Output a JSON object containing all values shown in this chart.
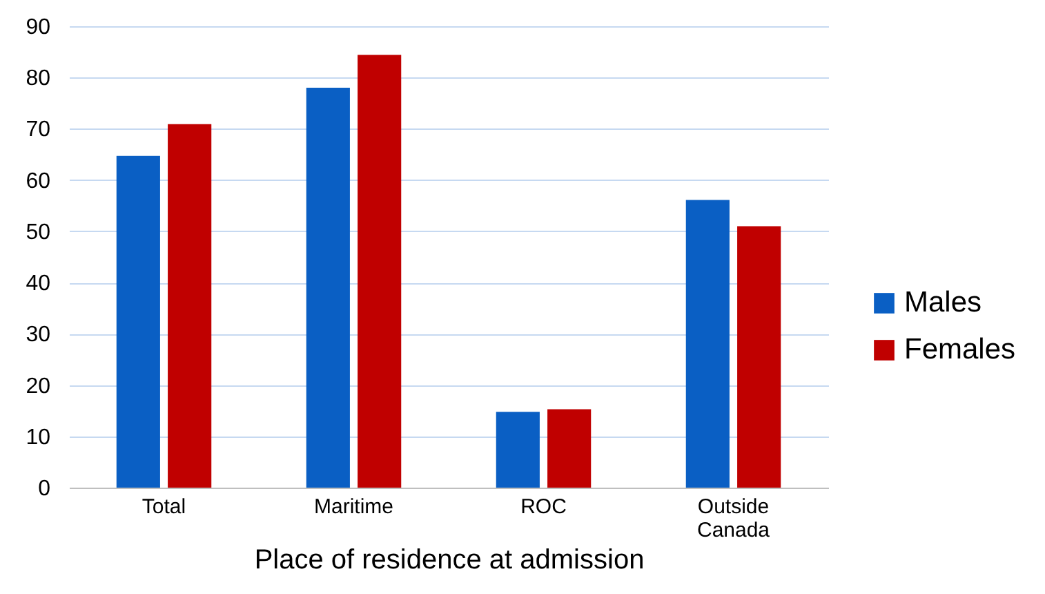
{
  "chart_data": {
    "type": "bar",
    "xlabel": "Place of residence at admission",
    "categories": [
      "Total",
      "Maritime",
      "ROC",
      "Outside Canada"
    ],
    "series": [
      {
        "name": "Males",
        "color": "#0a5fc4",
        "values": [
          64.7,
          78,
          14.8,
          56.1
        ]
      },
      {
        "name": "Females",
        "color": "#c00000",
        "values": [
          70.9,
          84.4,
          15.3,
          51
        ]
      }
    ],
    "ylim": [
      0,
      90
    ],
    "yticks": [
      0,
      10,
      20,
      30,
      40,
      50,
      60,
      70,
      80,
      90
    ],
    "grid": "y",
    "legend": "right"
  }
}
